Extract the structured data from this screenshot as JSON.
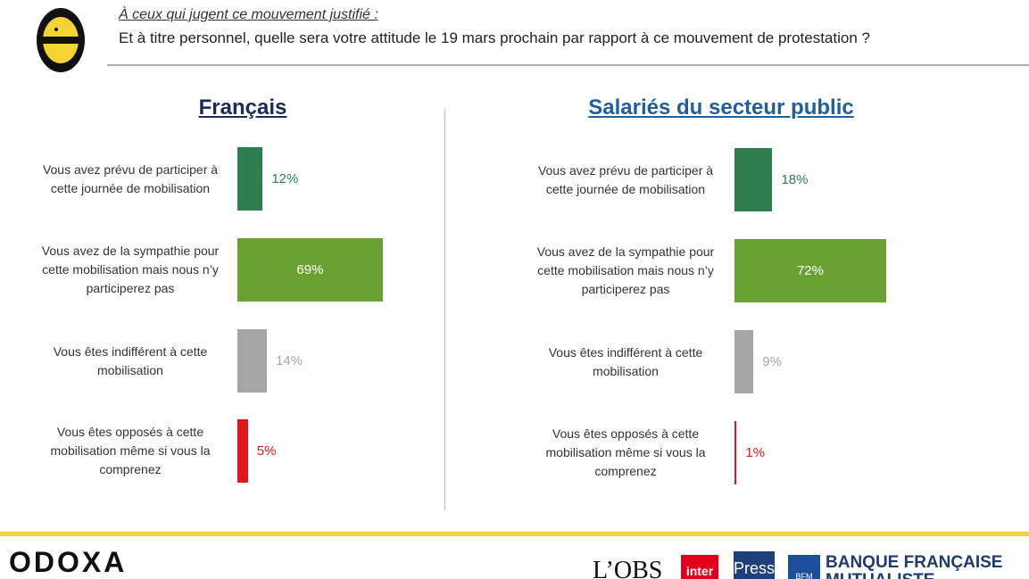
{
  "header": {
    "subtitle": "À ceux qui jugent ce mouvement justifié :",
    "question": "Et à titre personnel, quelle sera votre attitude le 19 mars prochain par rapport à ce mouvement de protestation ?"
  },
  "chart_data": [
    {
      "type": "bar",
      "orientation": "horizontal",
      "title": "Français",
      "title_color": "#1f2a5a",
      "categories": [
        "Vous avez prévu de participer à cette journée de mobilisation",
        "Vous avez de la sympathie pour cette mobilisation mais nous n’y participerez pas",
        "Vous êtes indifférent à cette mobilisation",
        "Vous êtes opposés à cette mobilisation même si vous la comprenez"
      ],
      "values": [
        12,
        69,
        14,
        5
      ],
      "value_labels": [
        "12%",
        "69%",
        "14%",
        "5%"
      ],
      "colors": [
        "#2e7d4f",
        "#6aa232",
        "#a6a6a6",
        "#e0161b"
      ]
    },
    {
      "type": "bar",
      "orientation": "horizontal",
      "title": "Salariés du secteur public",
      "title_color": "#1f5fa0",
      "categories": [
        "Vous avez prévu de participer à cette journée de mobilisation",
        "Vous avez de la sympathie pour cette mobilisation mais nous n’y participerez pas",
        "Vous êtes indifférent à cette mobilisation",
        "Vous êtes opposés à cette mobilisation même si vous la comprenez"
      ],
      "values": [
        18,
        72,
        9,
        1
      ],
      "value_labels": [
        "18%",
        "72%",
        "9%",
        "1%"
      ],
      "colors": [
        "#2e7d4f",
        "#6aa232",
        "#a6a6a6",
        "#e0161b"
      ]
    }
  ],
  "footer": {
    "brand": "ODOXA",
    "partners": [
      "L’OBS",
      "inter",
      "Presse",
      "BFM",
      "BANQUE FRANÇAISE",
      "MUTUALISTE"
    ]
  }
}
